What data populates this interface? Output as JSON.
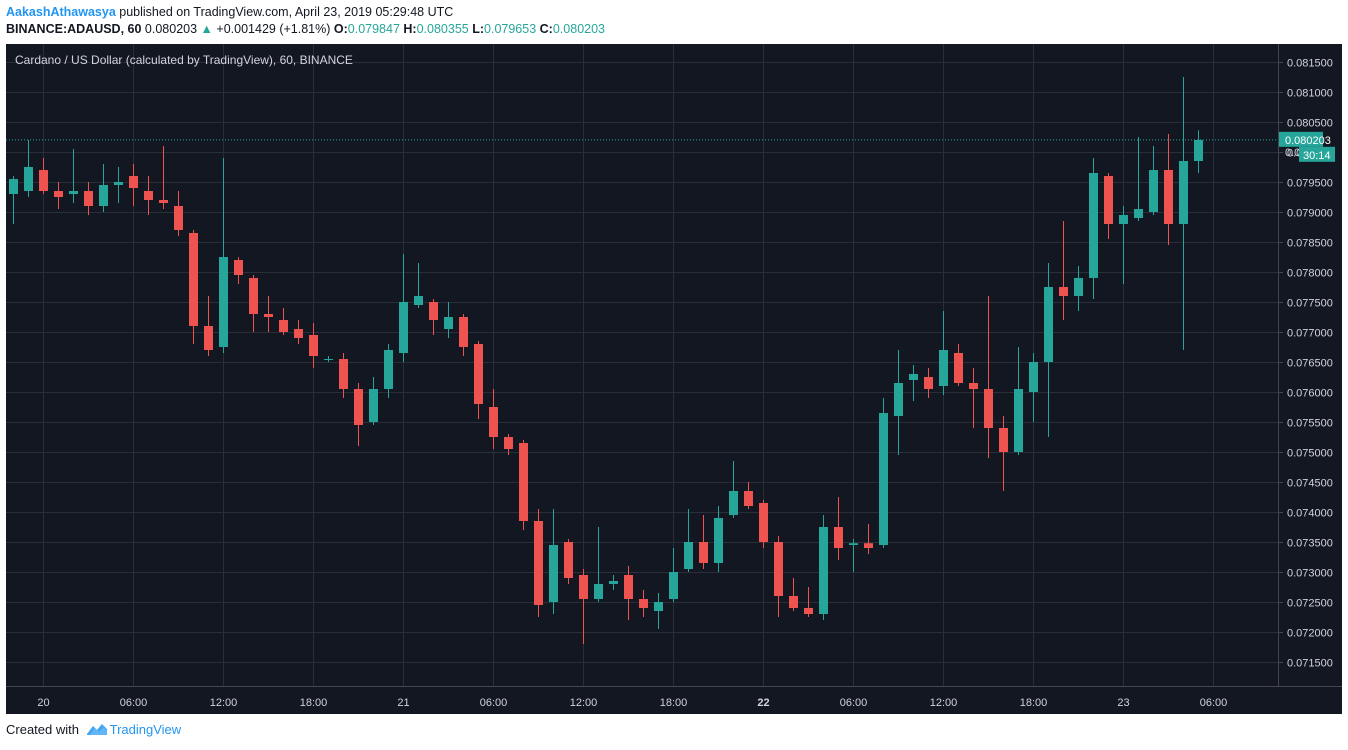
{
  "publish": {
    "author": "AakashAthawasya",
    "text": "published on TradingView.com, April 23, 2019 05:29:48 UTC"
  },
  "symbol_line": {
    "symbol": "BINANCE:ADAUSD, 60",
    "last": "0.080203",
    "change": "+0.001429 (+1.81%)",
    "open_label": "O:",
    "open": "0.079847",
    "high_label": "H:",
    "high": "0.080355",
    "low_label": "L:",
    "low": "0.079653",
    "close_label": "C:",
    "close": "0.080203"
  },
  "footer": {
    "created_with": "Created with",
    "brand": "TradingView"
  },
  "colors": {
    "background": "#131722",
    "grid": "#2a2e39",
    "up": "#26a69a",
    "down": "#ef5350",
    "axis_text": "#d1d4dc",
    "price_line": "#26a69a"
  },
  "chart_data": {
    "type": "candlestick",
    "title": "Cardano / US Dollar (calculated by TradingView), 60, BINANCE",
    "ylim": [
      0.0711,
      0.0818
    ],
    "y_ticks": [
      "0.081500",
      "0.081000",
      "0.080500",
      "0.080000",
      "0.079500",
      "0.079000",
      "0.078500",
      "0.078000",
      "0.077500",
      "0.077000",
      "0.076500",
      "0.076000",
      "0.075500",
      "0.075000",
      "0.074500",
      "0.074000",
      "0.073500",
      "0.073000",
      "0.072500",
      "0.072000",
      "0.071500"
    ],
    "x_ticks": [
      {
        "label": "20",
        "bar": 2,
        "bold": false
      },
      {
        "label": "06:00",
        "bar": 8,
        "bold": false
      },
      {
        "label": "12:00",
        "bar": 14,
        "bold": false
      },
      {
        "label": "18:00",
        "bar": 20,
        "bold": false
      },
      {
        "label": "21",
        "bar": 26,
        "bold": false
      },
      {
        "label": "06:00",
        "bar": 32,
        "bold": false
      },
      {
        "label": "12:00",
        "bar": 38,
        "bold": false
      },
      {
        "label": "18:00",
        "bar": 44,
        "bold": false
      },
      {
        "label": "22",
        "bar": 50,
        "bold": true
      },
      {
        "label": "06:00",
        "bar": 56,
        "bold": false
      },
      {
        "label": "12:00",
        "bar": 62,
        "bold": false
      },
      {
        "label": "18:00",
        "bar": 68,
        "bold": false
      },
      {
        "label": "23",
        "bar": 74,
        "bold": false
      },
      {
        "label": "06:00",
        "bar": 80,
        "bold": false
      }
    ],
    "last_price_label": "0.080203",
    "countdown_label": "30:14",
    "hidden_tick_label": "0.08",
    "candles": [
      {
        "o": 0.0793,
        "h": 0.0796,
        "l": 0.0788,
        "c": 0.07955
      },
      {
        "o": 0.07935,
        "h": 0.0802,
        "l": 0.07925,
        "c": 0.07975
      },
      {
        "o": 0.0797,
        "h": 0.0799,
        "l": 0.0793,
        "c": 0.07935
      },
      {
        "o": 0.07935,
        "h": 0.0795,
        "l": 0.07905,
        "c": 0.07925
      },
      {
        "o": 0.0793,
        "h": 0.08005,
        "l": 0.07915,
        "c": 0.07935
      },
      {
        "o": 0.07935,
        "h": 0.0795,
        "l": 0.07895,
        "c": 0.0791
      },
      {
        "o": 0.0791,
        "h": 0.0798,
        "l": 0.079,
        "c": 0.07945
      },
      {
        "o": 0.07945,
        "h": 0.07975,
        "l": 0.07915,
        "c": 0.0795
      },
      {
        "o": 0.0796,
        "h": 0.0798,
        "l": 0.0791,
        "c": 0.0794
      },
      {
        "o": 0.07935,
        "h": 0.0796,
        "l": 0.07895,
        "c": 0.0792
      },
      {
        "o": 0.0792,
        "h": 0.0801,
        "l": 0.07905,
        "c": 0.07915
      },
      {
        "o": 0.0791,
        "h": 0.07935,
        "l": 0.0786,
        "c": 0.0787
      },
      {
        "o": 0.07865,
        "h": 0.0787,
        "l": 0.0768,
        "c": 0.0771
      },
      {
        "o": 0.0771,
        "h": 0.0776,
        "l": 0.0766,
        "c": 0.0767
      },
      {
        "o": 0.07675,
        "h": 0.0799,
        "l": 0.07665,
        "c": 0.07825
      },
      {
        "o": 0.0782,
        "h": 0.07825,
        "l": 0.0778,
        "c": 0.07795
      },
      {
        "o": 0.0779,
        "h": 0.07795,
        "l": 0.077,
        "c": 0.0773
      },
      {
        "o": 0.0773,
        "h": 0.0776,
        "l": 0.077,
        "c": 0.07725
      },
      {
        "o": 0.0772,
        "h": 0.0774,
        "l": 0.07695,
        "c": 0.077
      },
      {
        "o": 0.07705,
        "h": 0.0772,
        "l": 0.0768,
        "c": 0.0769
      },
      {
        "o": 0.07695,
        "h": 0.07715,
        "l": 0.0764,
        "c": 0.0766
      },
      {
        "o": 0.07655,
        "h": 0.0766,
        "l": 0.0765,
        "c": 0.07655
      },
      {
        "o": 0.07655,
        "h": 0.07665,
        "l": 0.0759,
        "c": 0.07605
      },
      {
        "o": 0.07605,
        "h": 0.07615,
        "l": 0.0751,
        "c": 0.07545
      },
      {
        "o": 0.0755,
        "h": 0.07625,
        "l": 0.07545,
        "c": 0.07605
      },
      {
        "o": 0.07605,
        "h": 0.0768,
        "l": 0.0759,
        "c": 0.0767
      },
      {
        "o": 0.07665,
        "h": 0.0783,
        "l": 0.0765,
        "c": 0.0775
      },
      {
        "o": 0.07745,
        "h": 0.07815,
        "l": 0.0774,
        "c": 0.0776
      },
      {
        "o": 0.0775,
        "h": 0.07755,
        "l": 0.07695,
        "c": 0.0772
      },
      {
        "o": 0.07705,
        "h": 0.0775,
        "l": 0.0769,
        "c": 0.07725
      },
      {
        "o": 0.07725,
        "h": 0.0773,
        "l": 0.0766,
        "c": 0.07675
      },
      {
        "o": 0.0768,
        "h": 0.07685,
        "l": 0.07555,
        "c": 0.0758
      },
      {
        "o": 0.07575,
        "h": 0.07605,
        "l": 0.07505,
        "c": 0.07525
      },
      {
        "o": 0.07525,
        "h": 0.0753,
        "l": 0.07495,
        "c": 0.07505
      },
      {
        "o": 0.07515,
        "h": 0.0752,
        "l": 0.0737,
        "c": 0.07385
      },
      {
        "o": 0.07385,
        "h": 0.07405,
        "l": 0.07225,
        "c": 0.07245
      },
      {
        "o": 0.0725,
        "h": 0.07405,
        "l": 0.0723,
        "c": 0.07345
      },
      {
        "o": 0.0735,
        "h": 0.07355,
        "l": 0.0728,
        "c": 0.0729
      },
      {
        "o": 0.07295,
        "h": 0.07305,
        "l": 0.0718,
        "c": 0.07255
      },
      {
        "o": 0.07255,
        "h": 0.07375,
        "l": 0.0725,
        "c": 0.0728
      },
      {
        "o": 0.0728,
        "h": 0.07295,
        "l": 0.0727,
        "c": 0.07285
      },
      {
        "o": 0.07295,
        "h": 0.0731,
        "l": 0.0722,
        "c": 0.07255
      },
      {
        "o": 0.07255,
        "h": 0.0727,
        "l": 0.07225,
        "c": 0.0724
      },
      {
        "o": 0.07235,
        "h": 0.07265,
        "l": 0.07205,
        "c": 0.0725
      },
      {
        "o": 0.07255,
        "h": 0.0734,
        "l": 0.0725,
        "c": 0.073
      },
      {
        "o": 0.07305,
        "h": 0.07405,
        "l": 0.073,
        "c": 0.0735
      },
      {
        "o": 0.0735,
        "h": 0.07395,
        "l": 0.07305,
        "c": 0.07315
      },
      {
        "o": 0.07315,
        "h": 0.0741,
        "l": 0.073,
        "c": 0.0739
      },
      {
        "o": 0.07395,
        "h": 0.07485,
        "l": 0.0739,
        "c": 0.07435
      },
      {
        "o": 0.07435,
        "h": 0.0745,
        "l": 0.07405,
        "c": 0.0741
      },
      {
        "o": 0.07415,
        "h": 0.0742,
        "l": 0.0734,
        "c": 0.0735
      },
      {
        "o": 0.0735,
        "h": 0.0736,
        "l": 0.07225,
        "c": 0.0726
      },
      {
        "o": 0.0726,
        "h": 0.0729,
        "l": 0.07235,
        "c": 0.0724
      },
      {
        "o": 0.0724,
        "h": 0.07275,
        "l": 0.07225,
        "c": 0.0723
      },
      {
        "o": 0.0723,
        "h": 0.07395,
        "l": 0.0722,
        "c": 0.07375
      },
      {
        "o": 0.07375,
        "h": 0.07425,
        "l": 0.0732,
        "c": 0.0734
      },
      {
        "o": 0.07345,
        "h": 0.07355,
        "l": 0.073,
        "c": 0.07348
      },
      {
        "o": 0.07348,
        "h": 0.0738,
        "l": 0.0733,
        "c": 0.0734
      },
      {
        "o": 0.07345,
        "h": 0.0759,
        "l": 0.0734,
        "c": 0.07565
      },
      {
        "o": 0.0756,
        "h": 0.0767,
        "l": 0.07495,
        "c": 0.07615
      },
      {
        "o": 0.0762,
        "h": 0.07645,
        "l": 0.07585,
        "c": 0.0763
      },
      {
        "o": 0.07625,
        "h": 0.0764,
        "l": 0.0759,
        "c": 0.07605
      },
      {
        "o": 0.0761,
        "h": 0.07735,
        "l": 0.07595,
        "c": 0.0767
      },
      {
        "o": 0.07665,
        "h": 0.0768,
        "l": 0.0761,
        "c": 0.07615
      },
      {
        "o": 0.07615,
        "h": 0.0764,
        "l": 0.0754,
        "c": 0.07605
      },
      {
        "o": 0.07605,
        "h": 0.0776,
        "l": 0.0749,
        "c": 0.0754
      },
      {
        "o": 0.0754,
        "h": 0.0756,
        "l": 0.07435,
        "c": 0.075
      },
      {
        "o": 0.075,
        "h": 0.07675,
        "l": 0.07495,
        "c": 0.07605
      },
      {
        "o": 0.076,
        "h": 0.07665,
        "l": 0.0755,
        "c": 0.0765
      },
      {
        "o": 0.0765,
        "h": 0.07815,
        "l": 0.07525,
        "c": 0.07775
      },
      {
        "o": 0.07775,
        "h": 0.07885,
        "l": 0.0772,
        "c": 0.0776
      },
      {
        "o": 0.0776,
        "h": 0.0781,
        "l": 0.07735,
        "c": 0.0779
      },
      {
        "o": 0.0779,
        "h": 0.0799,
        "l": 0.07755,
        "c": 0.07965
      },
      {
        "o": 0.0796,
        "h": 0.07965,
        "l": 0.07855,
        "c": 0.0788
      },
      {
        "o": 0.0788,
        "h": 0.0791,
        "l": 0.0778,
        "c": 0.07895
      },
      {
        "o": 0.0789,
        "h": 0.08025,
        "l": 0.07885,
        "c": 0.07905
      },
      {
        "o": 0.079,
        "h": 0.0801,
        "l": 0.07895,
        "c": 0.0797
      },
      {
        "o": 0.0797,
        "h": 0.0803,
        "l": 0.07845,
        "c": 0.0788
      },
      {
        "o": 0.0788,
        "h": 0.08125,
        "l": 0.0767,
        "c": 0.07985
      },
      {
        "o": 0.07985,
        "h": 0.08036,
        "l": 0.07965,
        "c": 0.0802
      }
    ]
  }
}
